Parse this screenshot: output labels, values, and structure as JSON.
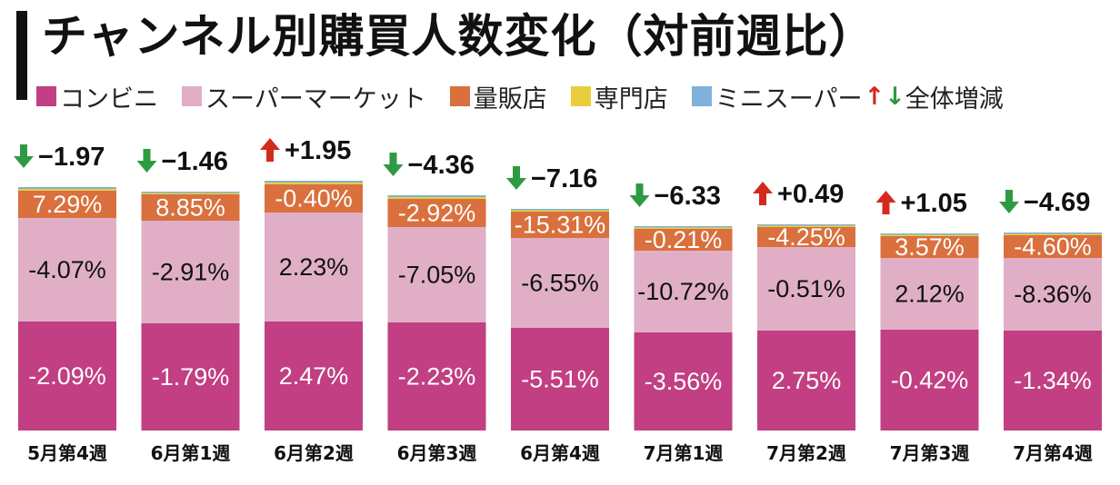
{
  "title": "チャンネル別購買人数変化（対前週比）",
  "legend": {
    "items": [
      {
        "label": "コンビニ",
        "color": "#c13f82"
      },
      {
        "label": "スーパーマーケット",
        "color": "#e0afc6"
      },
      {
        "label": "量販店",
        "color": "#d9703d"
      },
      {
        "label": "専門店",
        "color": "#e9cf3e"
      },
      {
        "label": "ミニスーパー",
        "color": "#7fb1da"
      }
    ],
    "up_symbol": "↑",
    "down_symbol": "↓",
    "total_label": "全体増減"
  },
  "chart_data": {
    "type": "bar",
    "stacked": true,
    "categories": [
      "5月第4週",
      "6月第1週",
      "6月第2週",
      "6月第3週",
      "6月第4週",
      "7月第1週",
      "7月第2週",
      "7月第3週",
      "7月第4週"
    ],
    "series": [
      {
        "name": "コンビニ",
        "color": "#c13f82",
        "labels": [
          "-2.09%",
          "-1.79%",
          "2.47%",
          "-2.23%",
          "-5.51%",
          "-3.56%",
          "2.75%",
          "-0.42%",
          "-1.34%"
        ]
      },
      {
        "name": "スーパーマーケット",
        "color": "#e0afc6",
        "labels": [
          "-4.07%",
          "-2.91%",
          "2.23%",
          "-7.05%",
          "-6.55%",
          "-10.72%",
          "-0.51%",
          "2.12%",
          "-8.36%"
        ]
      },
      {
        "name": "量販店",
        "color": "#d9703d",
        "labels": [
          "7.29%",
          "8.85%",
          "-0.40%",
          "-2.92%",
          "-15.31%",
          "-0.21%",
          "-4.25%",
          "3.57%",
          "-4.60%"
        ]
      },
      {
        "name": "専門店",
        "color": "#e9cf3e",
        "labels": []
      },
      {
        "name": "ミニスーパー",
        "color": "#7fb1da",
        "labels": []
      }
    ],
    "totals": [
      "−1.97",
      "−1.46",
      "+1.95",
      "−4.36",
      "−7.16",
      "−6.33",
      "+0.49",
      "+1.05",
      "−4.69"
    ],
    "directions": [
      "down",
      "down",
      "up",
      "down",
      "down",
      "down",
      "up",
      "up",
      "down"
    ]
  }
}
